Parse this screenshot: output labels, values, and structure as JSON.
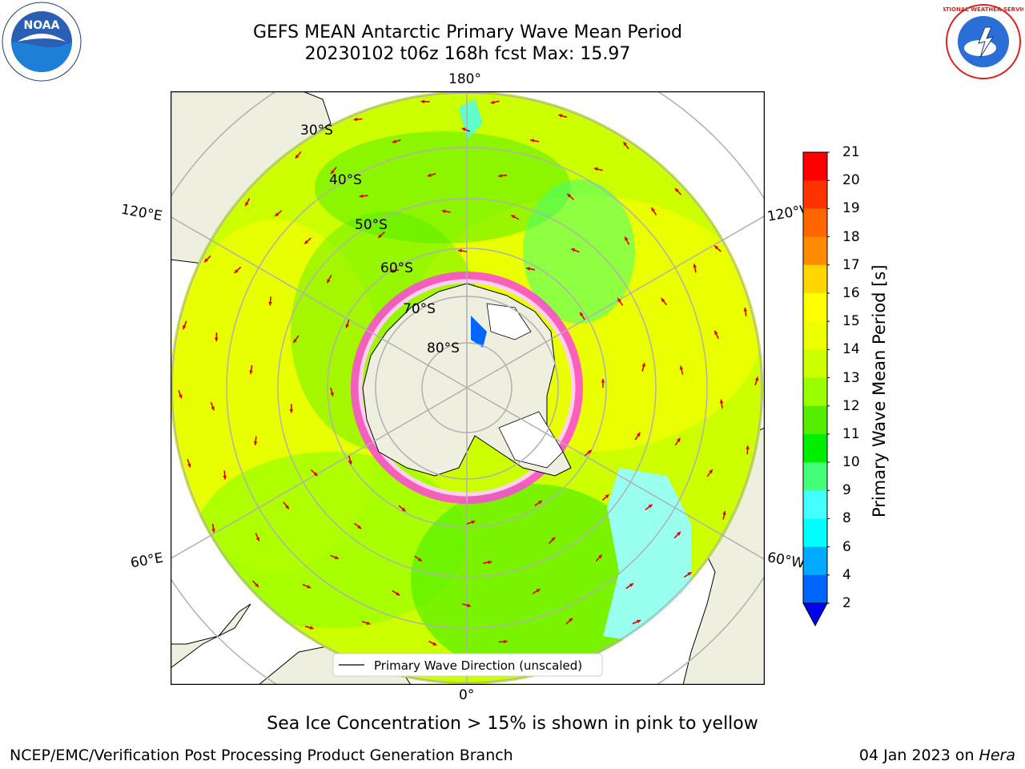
{
  "header": {
    "title_line1": "GEFS MEAN Antarctic Primary Wave Mean Period",
    "title_line2": "20230102 t06z 168h fcst   Max: 15.97"
  },
  "logos": {
    "left": "noara-logo",
    "left_text": "NOAA",
    "right": "nws-logo",
    "right_text": "NATIONAL WEATHER SERVICE"
  },
  "map": {
    "projection": "south-polar-stereographic",
    "lon_labels": {
      "top": "180°",
      "bottom": "0°",
      "left_upper": "120°E",
      "left_lower": "60°E",
      "right_upper": "120°W",
      "right_lower": "60°W"
    },
    "lat_labels": [
      "30°S",
      "40°S",
      "50°S",
      "60°S",
      "70°S",
      "80°S"
    ],
    "legend": "Primary Wave Direction (unscaled)"
  },
  "colorbar": {
    "title": "Primary Wave Mean Period [s]",
    "ticks": [
      "21",
      "20",
      "19",
      "18",
      "17",
      "16",
      "15",
      "14",
      "13",
      "12",
      "11",
      "10",
      "9",
      "8",
      "6",
      "4",
      "2"
    ],
    "colors": [
      "#ff0000",
      "#ff3300",
      "#ff6600",
      "#ff8c00",
      "#ffb400",
      "#ffd700",
      "#ffff00",
      "#eeff00",
      "#ccff00",
      "#99ff00",
      "#55ee00",
      "#00ee00",
      "#44ff77",
      "#99ffee",
      "#44ffff",
      "#00ffff",
      "#00aaff",
      "#0066ff",
      "#0000ee"
    ]
  },
  "caption": "Sea Ice Concentration > 15% is shown in pink to yellow",
  "footer": {
    "left": "NCEP/EMC/Verification Post Processing Product Generation Branch",
    "right_date": "04 Jan 2023 on ",
    "right_machine": "Hera"
  }
}
